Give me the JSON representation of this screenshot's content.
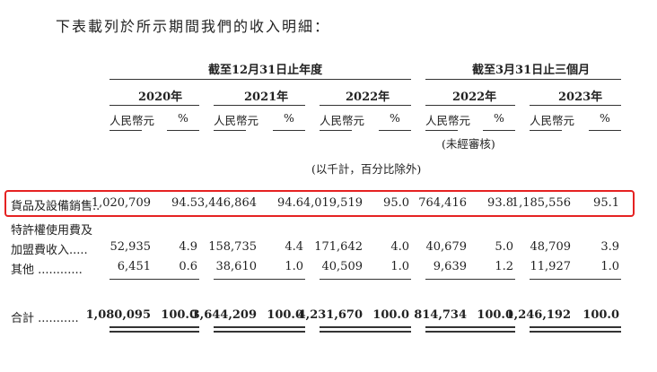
{
  "intro": "下表載列於所示期間我們的收入明細：",
  "group_headers": {
    "annual": "截至12月31日止年度",
    "quarter": "截至3月31日止三個月"
  },
  "years": [
    "2020年",
    "2021年",
    "2022年",
    "2022年",
    "2023年"
  ],
  "unit_rmb": "人民幣元",
  "unit_pct": "%",
  "note_unaudited": "(未經審核)",
  "note_thousands": "(以千計，百分比除外)",
  "rows": [
    {
      "label": [
        "貨品及設備銷售.."
      ],
      "values": [
        "1,020,709",
        "94.5",
        "3,446,864",
        "94.6",
        "4,019,519",
        "95.0",
        "764,416",
        "93.8",
        "1,185,556",
        "95.1"
      ]
    },
    {
      "label": [
        "特許權使用費及",
        "加盟費收入....."
      ],
      "values": [
        "52,935",
        "4.9",
        "158,735",
        "4.4",
        "171,642",
        "4.0",
        "40,679",
        "5.0",
        "48,709",
        "3.9"
      ]
    },
    {
      "label": [
        "其他 ............"
      ],
      "values": [
        "6,451",
        "0.6",
        "38,610",
        "1.0",
        "40,509",
        "1.0",
        "9,639",
        "1.2",
        "11,927",
        "1.0"
      ]
    },
    {
      "label": [
        "合計 ..........."
      ],
      "values": [
        "1,080,095",
        "100.0",
        "3,644,209",
        "100.0",
        "4,231,670",
        "100.0",
        "814,734",
        "100.0",
        "1,246,192",
        "100.0"
      ]
    }
  ],
  "colors": {
    "highlight_border": "#e52222",
    "text": "#222222"
  }
}
